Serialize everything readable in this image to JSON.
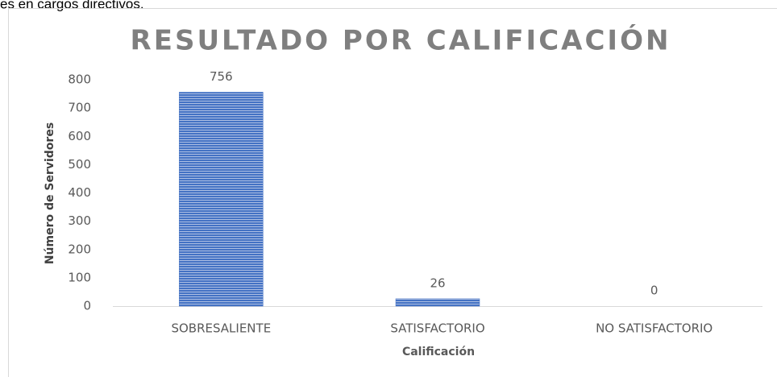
{
  "page_text": "es en cargos directivos.",
  "chart_data": {
    "type": "bar",
    "title": "RESULTADO POR CALIFICACIÓN",
    "x_label": "Calificación",
    "y_label": "Número de Servidores",
    "categories": [
      "SOBRESALIENTE",
      "SATISFACTORIO",
      "NO SATISFACTORIO"
    ],
    "values": [
      756,
      26,
      0
    ],
    "color": "#4472c4",
    "ylim": [
      0,
      800
    ],
    "yticks": [
      0,
      100,
      200,
      300,
      400,
      500,
      600,
      700,
      800
    ],
    "grid": false
  }
}
